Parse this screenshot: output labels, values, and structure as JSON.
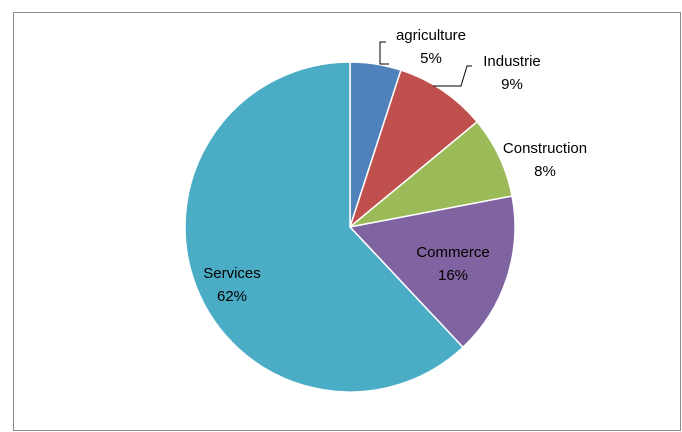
{
  "chart_data": {
    "type": "pie",
    "title": "",
    "legend": "none",
    "slices": [
      {
        "name": "agriculture",
        "value": 5,
        "label": "5%",
        "color": "#4f81bd"
      },
      {
        "name": "Industrie",
        "value": 9,
        "label": "9%",
        "color": "#c0504d"
      },
      {
        "name": "Construction",
        "value": 8,
        "label": "8%",
        "color": "#9bbb59"
      },
      {
        "name": "Commerce",
        "value": 16,
        "label": "16%",
        "color": "#8064a2"
      },
      {
        "name": "Services",
        "value": 62,
        "label": "62%",
        "color": "#4bacc6"
      }
    ]
  }
}
